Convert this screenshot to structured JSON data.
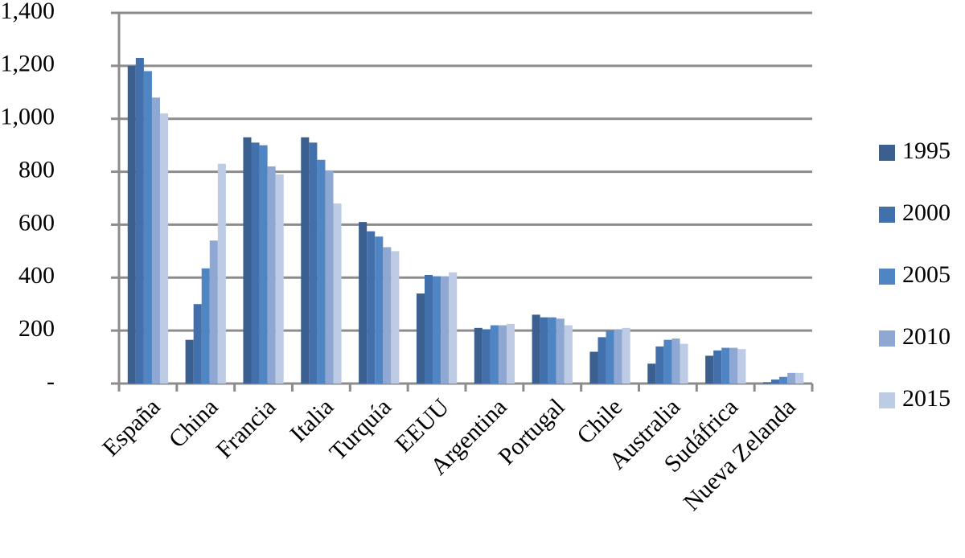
{
  "chart_data": {
    "type": "bar",
    "categories": [
      "España",
      "China",
      "Francia",
      "Italia",
      "Turquía",
      "EEUU",
      "Argentina",
      "Portugal",
      "Chile",
      "Australia",
      "Sudáfrica",
      "Nueva Zelanda"
    ],
    "series": [
      {
        "name": "1995",
        "color": "#3b5f8e",
        "values": [
          1200,
          165,
          930,
          930,
          610,
          340,
          210,
          260,
          120,
          75,
          105,
          5
        ]
      },
      {
        "name": "2000",
        "color": "#4270ac",
        "values": [
          1230,
          300,
          910,
          910,
          575,
          410,
          205,
          250,
          175,
          140,
          125,
          15
        ]
      },
      {
        "name": "2005",
        "color": "#5085c3",
        "values": [
          1180,
          435,
          900,
          845,
          555,
          405,
          220,
          250,
          200,
          165,
          135,
          25
        ]
      },
      {
        "name": "2010",
        "color": "#8ea8d3",
        "values": [
          1080,
          540,
          820,
          805,
          515,
          405,
          220,
          245,
          205,
          170,
          135,
          40
        ]
      },
      {
        "name": "2015",
        "color": "#bdcbe5",
        "values": [
          1020,
          830,
          790,
          680,
          500,
          420,
          225,
          220,
          210,
          150,
          130,
          40
        ]
      }
    ],
    "ylim": [
      0,
      1400
    ],
    "yticks": [
      {
        "value": 0,
        "label": "-"
      },
      200,
      400,
      600,
      800,
      {
        "value": 1000,
        "label": "1,000"
      },
      {
        "value": 1200,
        "label": "1,200"
      },
      {
        "value": 1400,
        "label": "1,400"
      }
    ],
    "grid": true,
    "legend": "right"
  }
}
